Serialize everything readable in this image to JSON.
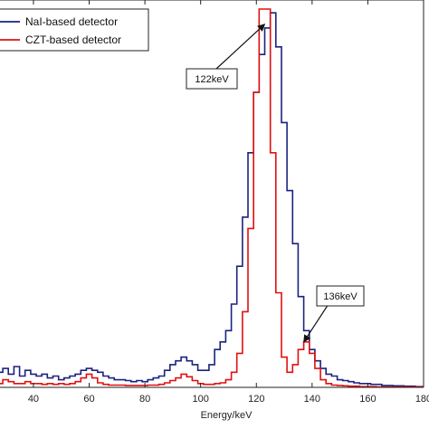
{
  "chart_data": {
    "type": "line",
    "title": "",
    "xlabel": "Energy/keV",
    "ylabel": "",
    "xlim": [
      28,
      180
    ],
    "ylim": [
      0,
      1.0
    ],
    "x_ticks": [
      40,
      60,
      80,
      100,
      120,
      140,
      160,
      180
    ],
    "x_tick_labels": [
      "40",
      "60",
      "80",
      "100",
      "120",
      "140",
      "160",
      "180"
    ],
    "grid": false,
    "legend_position": "top-left",
    "series": [
      {
        "name": "NaI-based detector",
        "color": "#1a237e",
        "points": [
          [
            28,
            0.04
          ],
          [
            30,
            0.05
          ],
          [
            32,
            0.035
          ],
          [
            34,
            0.055
          ],
          [
            36,
            0.03
          ],
          [
            38,
            0.045
          ],
          [
            40,
            0.035
          ],
          [
            42,
            0.03
          ],
          [
            44,
            0.035
          ],
          [
            46,
            0.025
          ],
          [
            48,
            0.03
          ],
          [
            50,
            0.02
          ],
          [
            52,
            0.025
          ],
          [
            54,
            0.03
          ],
          [
            56,
            0.035
          ],
          [
            58,
            0.045
          ],
          [
            60,
            0.05
          ],
          [
            62,
            0.045
          ],
          [
            64,
            0.04
          ],
          [
            66,
            0.03
          ],
          [
            68,
            0.025
          ],
          [
            70,
            0.02
          ],
          [
            72,
            0.02
          ],
          [
            74,
            0.018
          ],
          [
            76,
            0.015
          ],
          [
            78,
            0.018
          ],
          [
            80,
            0.015
          ],
          [
            82,
            0.02
          ],
          [
            84,
            0.025
          ],
          [
            86,
            0.03
          ],
          [
            88,
            0.045
          ],
          [
            90,
            0.06
          ],
          [
            92,
            0.07
          ],
          [
            94,
            0.08
          ],
          [
            96,
            0.07
          ],
          [
            98,
            0.06
          ],
          [
            100,
            0.045
          ],
          [
            102,
            0.045
          ],
          [
            104,
            0.06
          ],
          [
            106,
            0.1
          ],
          [
            108,
            0.12
          ],
          [
            110,
            0.15
          ],
          [
            112,
            0.22
          ],
          [
            114,
            0.32
          ],
          [
            116,
            0.45
          ],
          [
            118,
            0.62
          ],
          [
            120,
            0.78
          ],
          [
            122,
            0.88
          ],
          [
            124,
            0.95
          ],
          [
            126,
            0.99
          ],
          [
            128,
            0.9
          ],
          [
            130,
            0.7
          ],
          [
            132,
            0.52
          ],
          [
            134,
            0.38
          ],
          [
            136,
            0.24
          ],
          [
            138,
            0.15
          ],
          [
            140,
            0.1
          ],
          [
            142,
            0.07
          ],
          [
            144,
            0.05
          ],
          [
            146,
            0.035
          ],
          [
            148,
            0.03
          ],
          [
            150,
            0.02
          ],
          [
            152,
            0.018
          ],
          [
            154,
            0.015
          ],
          [
            156,
            0.012
          ],
          [
            158,
            0.01
          ],
          [
            160,
            0.01
          ],
          [
            162,
            0.008
          ],
          [
            164,
            0.008
          ],
          [
            166,
            0.005
          ],
          [
            168,
            0.005
          ],
          [
            170,
            0.004
          ],
          [
            172,
            0.004
          ],
          [
            174,
            0.003
          ],
          [
            176,
            0.003
          ],
          [
            178,
            0.002
          ],
          [
            180,
            0.002
          ]
        ]
      },
      {
        "name": "CZT-based detector",
        "color": "#e01010",
        "points": [
          [
            28,
            0.01
          ],
          [
            30,
            0.02
          ],
          [
            32,
            0.015
          ],
          [
            34,
            0.01
          ],
          [
            36,
            0.01
          ],
          [
            38,
            0.015
          ],
          [
            40,
            0.01
          ],
          [
            42,
            0.01
          ],
          [
            44,
            0.008
          ],
          [
            46,
            0.01
          ],
          [
            48,
            0.008
          ],
          [
            50,
            0.01
          ],
          [
            52,
            0.008
          ],
          [
            54,
            0.01
          ],
          [
            56,
            0.015
          ],
          [
            58,
            0.025
          ],
          [
            60,
            0.035
          ],
          [
            62,
            0.025
          ],
          [
            64,
            0.012
          ],
          [
            66,
            0.008
          ],
          [
            68,
            0.006
          ],
          [
            70,
            0.006
          ],
          [
            72,
            0.006
          ],
          [
            74,
            0.005
          ],
          [
            76,
            0.005
          ],
          [
            78,
            0.005
          ],
          [
            80,
            0.005
          ],
          [
            82,
            0.006
          ],
          [
            84,
            0.006
          ],
          [
            86,
            0.008
          ],
          [
            88,
            0.012
          ],
          [
            90,
            0.018
          ],
          [
            92,
            0.025
          ],
          [
            94,
            0.035
          ],
          [
            96,
            0.028
          ],
          [
            98,
            0.018
          ],
          [
            100,
            0.01
          ],
          [
            102,
            0.008
          ],
          [
            104,
            0.008
          ],
          [
            106,
            0.01
          ],
          [
            108,
            0.012
          ],
          [
            110,
            0.02
          ],
          [
            112,
            0.04
          ],
          [
            114,
            0.09
          ],
          [
            116,
            0.2
          ],
          [
            118,
            0.42
          ],
          [
            120,
            0.78
          ],
          [
            122,
            1.0
          ],
          [
            124,
            1.0
          ],
          [
            126,
            0.62
          ],
          [
            128,
            0.25
          ],
          [
            130,
            0.08
          ],
          [
            132,
            0.04
          ],
          [
            134,
            0.06
          ],
          [
            136,
            0.1
          ],
          [
            138,
            0.12
          ],
          [
            140,
            0.09
          ],
          [
            142,
            0.05
          ],
          [
            144,
            0.02
          ],
          [
            146,
            0.01
          ],
          [
            148,
            0.006
          ],
          [
            150,
            0.005
          ],
          [
            152,
            0.004
          ],
          [
            154,
            0.003
          ],
          [
            156,
            0.003
          ],
          [
            158,
            0.002
          ],
          [
            160,
            0.002
          ],
          [
            162,
            0.002
          ],
          [
            164,
            0.001
          ],
          [
            166,
            0.001
          ],
          [
            168,
            0.001
          ],
          [
            170,
            0.001
          ],
          [
            172,
            0.001
          ],
          [
            174,
            0.001
          ],
          [
            176,
            0.001
          ],
          [
            178,
            0.001
          ],
          [
            180,
            0.001
          ]
        ]
      }
    ],
    "annotations": [
      {
        "label": "122keV",
        "target_x": 123,
        "target_y": 0.96
      },
      {
        "label": "136keV",
        "target_x": 137,
        "target_y": 0.12
      }
    ]
  }
}
